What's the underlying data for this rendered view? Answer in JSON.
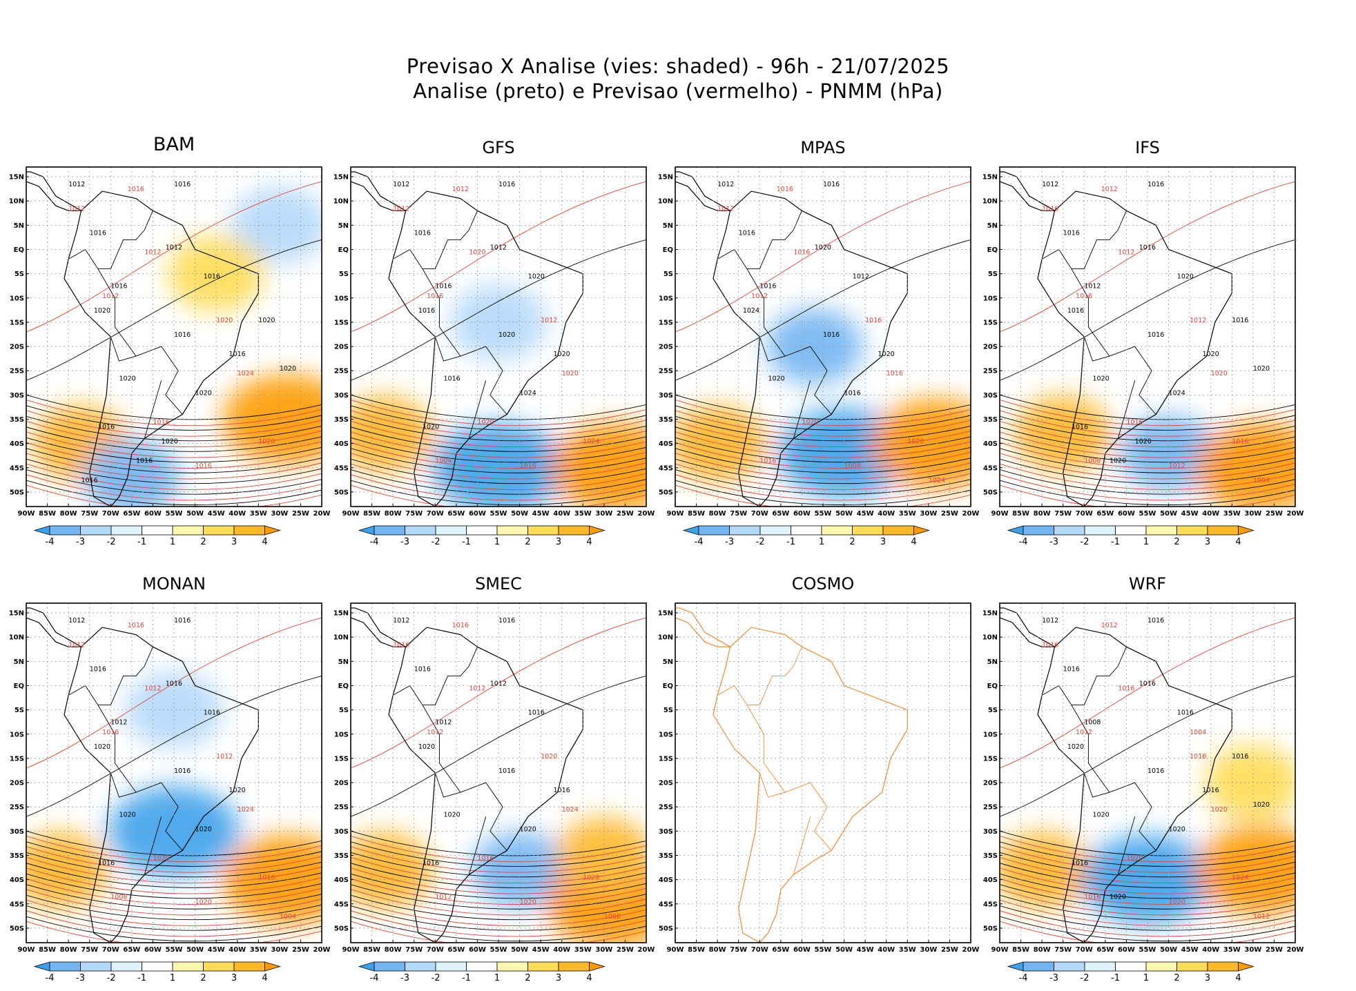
{
  "title_line1": "Previsao X Analise (vies: shaded) - 96h - 21/07/2025",
  "title_line2": "Analise (preto) e Previsao (vermelho) - PNMM (hPa)",
  "chart_data": {
    "type": "heatmap",
    "variable": "PNMM (hPa)",
    "bias_variable": "vies (hPa)",
    "forecast_hour": "96h",
    "date": "21/07/2025",
    "lon_ticks": [
      "90W",
      "85W",
      "80W",
      "75W",
      "70W",
      "65W",
      "60W",
      "55W",
      "50W",
      "45W",
      "40W",
      "35W",
      "30W",
      "25W",
      "20W"
    ],
    "lat_ticks": [
      "15N",
      "10N",
      "5N",
      "EQ",
      "5S",
      "10S",
      "15S",
      "20S",
      "25S",
      "30S",
      "35S",
      "40S",
      "45S",
      "50S"
    ],
    "xlim": [
      -90,
      -20
    ],
    "ylim": [
      -53,
      17
    ],
    "colorbar": {
      "levels": [
        "-4",
        "-3",
        "-2",
        "-1",
        "1",
        "2",
        "3",
        "4"
      ],
      "colors": [
        "#3da2ec",
        "#73b5f2",
        "#b3d8fa",
        "#dff4ff",
        "#ffffff",
        "#fff6b0",
        "#fedc55",
        "#fdb82a",
        "#fd9b00"
      ]
    },
    "panels": [
      {
        "name": "BAM",
        "has_data": true,
        "analysis_labels": [
          "1012",
          "1016",
          "1016",
          "1012",
          "1016",
          "1016",
          "1020",
          "1016",
          "1016",
          "1020",
          "1020",
          "1016",
          "1020",
          "1016",
          "1020",
          "1020",
          "1016"
        ],
        "forecast_labels": [
          "1016",
          "1012",
          "1012",
          "1012",
          "1020",
          "1024",
          "1020",
          "1016",
          "1016"
        ],
        "bias_regions": [
          {
            "lon": -77,
            "lat": -40,
            "bias": 3
          },
          {
            "lon": -28,
            "lat": -35,
            "bias": 4
          },
          {
            "lon": -65,
            "lat": -47,
            "bias": -3
          },
          {
            "lon": -30,
            "lat": 5,
            "bias": -2
          },
          {
            "lon": -45,
            "lat": -5,
            "bias": 2
          }
        ]
      },
      {
        "name": "GFS",
        "has_data": true,
        "analysis_labels": [
          "1012",
          "1016",
          "1016",
          "1012",
          "1016",
          "1020",
          "1016",
          "1020",
          "1020",
          "1016",
          "1024",
          "1020"
        ],
        "forecast_labels": [
          "1012",
          "1012",
          "1020",
          "1016",
          "1012",
          "1020",
          "1024",
          "1020",
          "1016",
          "1004"
        ],
        "bias_regions": [
          {
            "lon": -82,
            "lat": -38,
            "bias": 3
          },
          {
            "lon": -55,
            "lat": -45,
            "bias": -4
          },
          {
            "lon": -27,
            "lat": -45,
            "bias": 4
          },
          {
            "lon": -55,
            "lat": -15,
            "bias": -2
          }
        ]
      },
      {
        "name": "MPAS",
        "has_data": true,
        "analysis_labels": [
          "1012",
          "1016",
          "1016",
          "1020",
          "1016",
          "1012",
          "1024",
          "1016",
          "1020",
          "1020",
          "1016"
        ],
        "forecast_labels": [
          "1016",
          "1012",
          "1016",
          "1012",
          "1016",
          "1016",
          "1020",
          "1020",
          "1008",
          "1016",
          "1024"
        ],
        "bias_regions": [
          {
            "lon": -80,
            "lat": -40,
            "bias": 3
          },
          {
            "lon": -50,
            "lat": -42,
            "bias": -4
          },
          {
            "lon": -28,
            "lat": -40,
            "bias": 4
          },
          {
            "lon": -57,
            "lat": -20,
            "bias": -3
          }
        ]
      },
      {
        "name": "IFS",
        "has_data": true,
        "analysis_labels": [
          "1012",
          "1016",
          "1016",
          "1016",
          "1012",
          "1020",
          "1016",
          "1016",
          "1020",
          "1020",
          "1024",
          "1016",
          "1020",
          "1020",
          "1016",
          "1020"
        ],
        "forecast_labels": [
          "1012",
          "1016",
          "1012",
          "1016",
          "1012",
          "1020",
          "1016",
          "1016",
          "1012",
          "1008",
          "1004"
        ],
        "bias_regions": [
          {
            "lon": -75,
            "lat": -38,
            "bias": 3
          },
          {
            "lon": -50,
            "lat": -42,
            "bias": -3
          },
          {
            "lon": -28,
            "lat": -45,
            "bias": 4
          }
        ]
      },
      {
        "name": "MONAN",
        "has_data": true,
        "analysis_labels": [
          "1012",
          "1016",
          "1016",
          "1016",
          "1012",
          "1016",
          "1020",
          "1016",
          "1020",
          "1020",
          "1020",
          "1016"
        ],
        "forecast_labels": [
          "1016",
          "1012",
          "1012",
          "1016",
          "1012",
          "1024",
          "1016",
          "1020",
          "1020",
          "1008",
          "1004"
        ],
        "bias_regions": [
          {
            "lon": -82,
            "lat": -38,
            "bias": 3
          },
          {
            "lon": -55,
            "lat": -30,
            "bias": -4
          },
          {
            "lon": -28,
            "lat": -40,
            "bias": 4
          },
          {
            "lon": -55,
            "lat": -5,
            "bias": -2
          }
        ]
      },
      {
        "name": "SMEC",
        "has_data": true,
        "analysis_labels": [
          "1012",
          "1016",
          "1016",
          "1012",
          "1012",
          "1016",
          "1020",
          "1016",
          "1016",
          "1020",
          "1020",
          "1016"
        ],
        "forecast_labels": [
          "1016",
          "1016",
          "1012",
          "1012",
          "1020",
          "1024",
          "1020",
          "1016",
          "1020",
          "1012",
          "1008"
        ],
        "bias_regions": [
          {
            "lon": -82,
            "lat": -38,
            "bias": 3
          },
          {
            "lon": -50,
            "lat": -38,
            "bias": -3
          },
          {
            "lon": -28,
            "lat": -45,
            "bias": 4
          },
          {
            "lon": -30,
            "lat": -35,
            "bias": 3
          }
        ]
      },
      {
        "name": "COSMO",
        "has_data": false,
        "analysis_labels": [],
        "forecast_labels": [],
        "bias_regions": []
      },
      {
        "name": "WRF",
        "has_data": true,
        "analysis_labels": [
          "1012",
          "1016",
          "1016",
          "1016",
          "1008",
          "1016",
          "1020",
          "1016",
          "1016",
          "1020",
          "1020",
          "1016",
          "1020",
          "1020",
          "1016"
        ],
        "forecast_labels": [
          "1012",
          "1016",
          "1016",
          "1012",
          "1016",
          "1020",
          "1024",
          "1020",
          "1020",
          "1016",
          "1012",
          "1004"
        ],
        "bias_regions": [
          {
            "lon": -80,
            "lat": -38,
            "bias": 3
          },
          {
            "lon": -55,
            "lat": -40,
            "bias": -4
          },
          {
            "lon": -30,
            "lat": -20,
            "bias": 2
          },
          {
            "lon": -28,
            "lat": -38,
            "bias": 4
          }
        ]
      }
    ]
  }
}
